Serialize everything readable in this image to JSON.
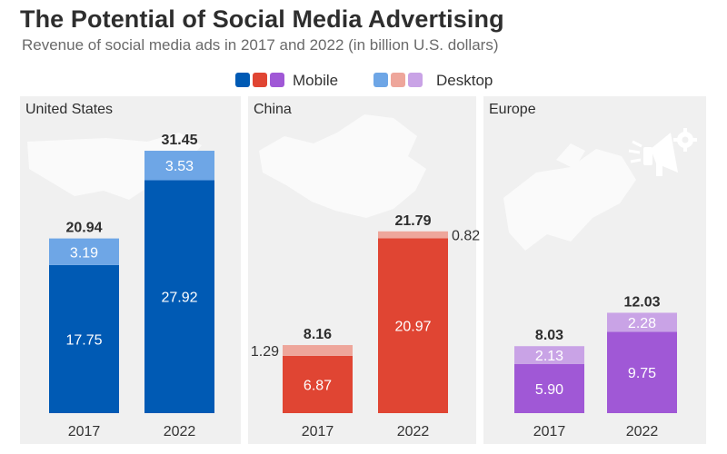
{
  "header": {
    "title": "The Potential of Social Media Advertising",
    "subtitle": "Revenue of social media ads in 2017 and 2022 (in billion U.S. dollars)"
  },
  "legend": {
    "mobile_label": "Mobile",
    "desktop_label": "Desktop"
  },
  "colors": {
    "us_mobile": "#005ab4",
    "us_desktop": "#6ea6e6",
    "china_mobile": "#e04533",
    "china_desktop": "#eea69b",
    "europe_mobile": "#a058d6",
    "europe_desktop": "#c9a3e6",
    "panel_bg": "#f0f0f0",
    "map_shape": "#fafafa"
  },
  "chart_data": [
    {
      "type": "bar",
      "stacked": true,
      "title": "United States",
      "categories": [
        "2017",
        "2022"
      ],
      "series": [
        {
          "name": "Mobile",
          "values": [
            17.75,
            27.92
          ]
        },
        {
          "name": "Desktop",
          "values": [
            3.19,
            3.53
          ]
        }
      ],
      "totals": [
        20.94,
        31.45
      ],
      "ylim": [
        0,
        34.5
      ],
      "grid": false
    },
    {
      "type": "bar",
      "stacked": true,
      "title": "China",
      "categories": [
        "2017",
        "2022"
      ],
      "series": [
        {
          "name": "Mobile",
          "values": [
            6.87,
            20.97
          ]
        },
        {
          "name": "Desktop",
          "values": [
            1.29,
            0.82
          ]
        }
      ],
      "totals": [
        8.16,
        21.79
      ],
      "ylim": [
        0,
        34.5
      ],
      "grid": false
    },
    {
      "type": "bar",
      "stacked": true,
      "title": "Europe",
      "categories": [
        "2017",
        "2022"
      ],
      "series": [
        {
          "name": "Mobile",
          "values": [
            5.9,
            9.75
          ]
        },
        {
          "name": "Desktop",
          "values": [
            2.13,
            2.28
          ]
        }
      ],
      "totals": [
        8.03,
        12.03
      ],
      "ylim": [
        0,
        34.5
      ],
      "grid": false
    }
  ]
}
